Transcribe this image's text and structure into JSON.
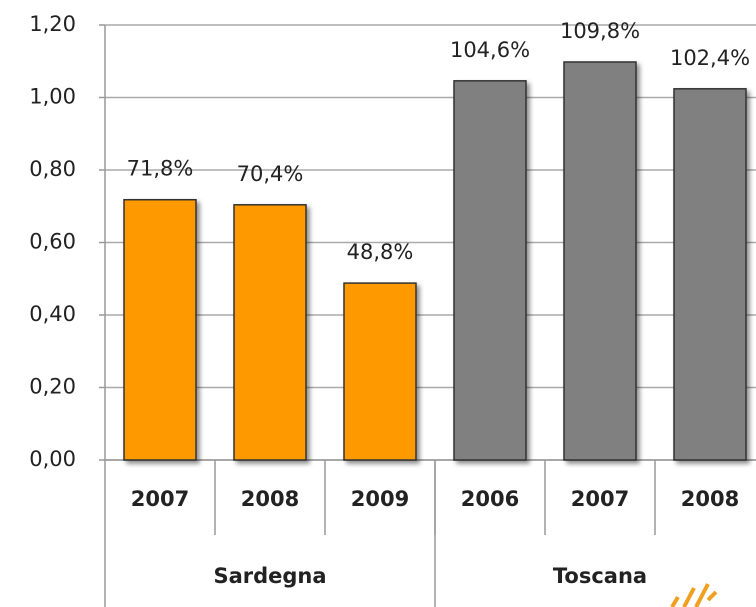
{
  "chart_data": {
    "type": "bar",
    "categories": [
      "2007",
      "2008",
      "2009",
      "2006",
      "2007",
      "2008"
    ],
    "series": [
      {
        "name": "Sardegna",
        "color": "#ff9900",
        "values": [
          0.718,
          0.704,
          0.488,
          null,
          null,
          null
        ],
        "value_labels": [
          "71,8%",
          "70,4%",
          "48,8%",
          null,
          null,
          null
        ]
      },
      {
        "name": "Toscana",
        "color": "#808080",
        "values": [
          null,
          null,
          null,
          1.046,
          1.098,
          1.024
        ],
        "value_labels": [
          null,
          null,
          null,
          "104,6%",
          "109,8%",
          "102,4%"
        ]
      }
    ],
    "ylim": [
      0,
      1.2
    ],
    "yticks": [
      {
        "value": 0,
        "label": "0,00"
      },
      {
        "value": 0.2,
        "label": "0,20"
      },
      {
        "value": 0.4,
        "label": "0,40"
      },
      {
        "value": 0.6,
        "label": "0,60"
      },
      {
        "value": 0.8,
        "label": "0,80"
      },
      {
        "value": 1.0,
        "label": "1,00"
      },
      {
        "value": 1.2,
        "label": "1,20"
      }
    ],
    "grid": true
  }
}
